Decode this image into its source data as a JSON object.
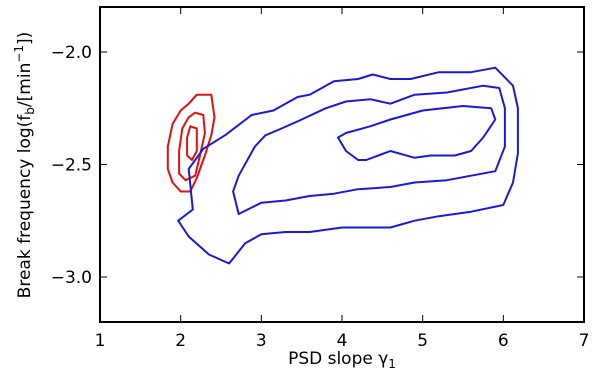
{
  "chart_data": {
    "type": "contour",
    "xlabel": "PSD slope γ",
    "xlabel_sub": "1",
    "ylabel": "Break frequency log(f",
    "ylabel_sub": "b",
    "ylabel_tail": "/[min",
    "ylabel_sup": "−1",
    "ylabel_end": "])",
    "xlim": [
      1,
      7
    ],
    "ylim": [
      -3.2,
      -1.8
    ],
    "xticks": [
      1,
      2,
      3,
      4,
      5,
      6,
      7
    ],
    "xtick_labels": [
      "1",
      "2",
      "3",
      "4",
      "5",
      "6",
      "7"
    ],
    "yticks": [
      -2.0,
      -2.5,
      -3.0
    ],
    "ytick_labels": [
      "−2.0",
      "−2.5",
      "−3.0"
    ],
    "grid": false,
    "colors": {
      "red": "#e01010",
      "blue": "#1a1ad6"
    },
    "series": [
      {
        "color": "red",
        "contours": [
          {
            "level": "outer",
            "points": [
              [
                2.2,
                -2.19
              ],
              [
                2.38,
                -2.19
              ],
              [
                2.42,
                -2.29
              ],
              [
                2.38,
                -2.37
              ],
              [
                2.3,
                -2.46
              ],
              [
                2.2,
                -2.56
              ],
              [
                2.12,
                -2.62
              ],
              [
                2.0,
                -2.62
              ],
              [
                1.9,
                -2.58
              ],
              [
                1.84,
                -2.52
              ],
              [
                1.84,
                -2.42
              ],
              [
                1.9,
                -2.32
              ],
              [
                2.0,
                -2.26
              ],
              [
                2.1,
                -2.23
              ],
              [
                2.2,
                -2.19
              ]
            ]
          },
          {
            "level": "middle",
            "points": [
              [
                2.18,
                -2.27
              ],
              [
                2.28,
                -2.28
              ],
              [
                2.3,
                -2.36
              ],
              [
                2.24,
                -2.46
              ],
              [
                2.18,
                -2.55
              ],
              [
                2.06,
                -2.57
              ],
              [
                1.98,
                -2.54
              ],
              [
                1.98,
                -2.44
              ],
              [
                2.02,
                -2.34
              ],
              [
                2.1,
                -2.29
              ],
              [
                2.18,
                -2.27
              ]
            ]
          },
          {
            "level": "inner",
            "points": [
              [
                2.12,
                -2.33
              ],
              [
                2.2,
                -2.34
              ],
              [
                2.2,
                -2.44
              ],
              [
                2.14,
                -2.48
              ],
              [
                2.08,
                -2.46
              ],
              [
                2.08,
                -2.38
              ],
              [
                2.12,
                -2.33
              ]
            ]
          }
        ]
      },
      {
        "color": "blue",
        "contours": [
          {
            "level": "outer",
            "points": [
              [
                2.1,
                -2.52
              ],
              [
                2.28,
                -2.43
              ],
              [
                2.55,
                -2.37
              ],
              [
                2.88,
                -2.28
              ],
              [
                3.15,
                -2.26
              ],
              [
                3.45,
                -2.2
              ],
              [
                3.6,
                -2.19
              ],
              [
                3.9,
                -2.13
              ],
              [
                4.2,
                -2.12
              ],
              [
                4.38,
                -2.1
              ],
              [
                4.6,
                -2.12
              ],
              [
                4.85,
                -2.12
              ],
              [
                5.2,
                -2.09
              ],
              [
                5.6,
                -2.09
              ],
              [
                5.9,
                -2.07
              ],
              [
                6.12,
                -2.15
              ],
              [
                6.18,
                -2.25
              ],
              [
                6.18,
                -2.45
              ],
              [
                6.12,
                -2.58
              ],
              [
                6.0,
                -2.68
              ],
              [
                5.6,
                -2.71
              ],
              [
                5.2,
                -2.73
              ],
              [
                4.9,
                -2.75
              ],
              [
                4.6,
                -2.78
              ],
              [
                4.3,
                -2.78
              ],
              [
                4.0,
                -2.78
              ],
              [
                3.6,
                -2.8
              ],
              [
                3.3,
                -2.8
              ],
              [
                3.0,
                -2.81
              ],
              [
                2.8,
                -2.85
              ],
              [
                2.6,
                -2.94
              ],
              [
                2.35,
                -2.9
              ],
              [
                2.1,
                -2.82
              ],
              [
                1.97,
                -2.75
              ],
              [
                2.15,
                -2.7
              ],
              [
                2.1,
                -2.52
              ]
            ]
          },
          {
            "level": "middle",
            "points": [
              [
                2.92,
                -2.42
              ],
              [
                3.05,
                -2.37
              ],
              [
                3.25,
                -2.34
              ],
              [
                3.5,
                -2.3
              ],
              [
                3.8,
                -2.25
              ],
              [
                4.05,
                -2.22
              ],
              [
                4.35,
                -2.21
              ],
              [
                4.6,
                -2.23
              ],
              [
                4.9,
                -2.19
              ],
              [
                5.3,
                -2.18
              ],
              [
                5.75,
                -2.15
              ],
              [
                5.95,
                -2.16
              ],
              [
                6.02,
                -2.25
              ],
              [
                6.02,
                -2.42
              ],
              [
                5.9,
                -2.53
              ],
              [
                5.6,
                -2.55
              ],
              [
                5.3,
                -2.57
              ],
              [
                4.9,
                -2.58
              ],
              [
                4.6,
                -2.6
              ],
              [
                4.2,
                -2.61
              ],
              [
                3.9,
                -2.63
              ],
              [
                3.6,
                -2.64
              ],
              [
                3.3,
                -2.66
              ],
              [
                3.0,
                -2.67
              ],
              [
                2.72,
                -2.72
              ],
              [
                2.65,
                -2.62
              ],
              [
                2.72,
                -2.55
              ],
              [
                2.92,
                -2.42
              ]
            ]
          },
          {
            "level": "inner",
            "points": [
              [
                3.95,
                -2.38
              ],
              [
                4.05,
                -2.36
              ],
              [
                4.35,
                -2.33
              ],
              [
                4.6,
                -2.3
              ],
              [
                5.0,
                -2.26
              ],
              [
                5.5,
                -2.24
              ],
              [
                5.85,
                -2.25
              ],
              [
                5.9,
                -2.3
              ],
              [
                5.75,
                -2.38
              ],
              [
                5.6,
                -2.44
              ],
              [
                5.4,
                -2.46
              ],
              [
                5.1,
                -2.46
              ],
              [
                4.9,
                -2.47
              ],
              [
                4.6,
                -2.44
              ],
              [
                4.3,
                -2.48
              ],
              [
                4.2,
                -2.48
              ],
              [
                4.05,
                -2.44
              ],
              [
                3.95,
                -2.38
              ]
            ]
          }
        ]
      }
    ]
  }
}
